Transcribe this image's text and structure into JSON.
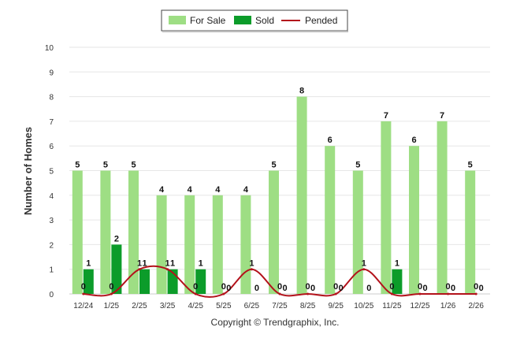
{
  "chart_data": {
    "type": "bar",
    "ylabel": "Number of Homes",
    "ylim": [
      0,
      10
    ],
    "yticks": [
      "0",
      "1",
      "2",
      "3",
      "4",
      "5",
      "6",
      "7",
      "8",
      "9",
      "10"
    ],
    "categories": [
      "12/24",
      "1/25",
      "2/25",
      "3/25",
      "4/25",
      "5/25",
      "6/25",
      "7/25",
      "8/25",
      "9/25",
      "10/25",
      "11/25",
      "12/25",
      "1/26",
      "2/26"
    ],
    "series": [
      {
        "name": "For Sale",
        "type": "bar",
        "color": "#9ede84",
        "values": [
          5,
          5,
          5,
          4,
          4,
          4,
          4,
          5,
          8,
          6,
          5,
          7,
          6,
          7,
          5
        ],
        "labels": [
          "5",
          "5",
          "5",
          "4",
          "4",
          "4",
          "4",
          "5",
          "8",
          "6",
          "5",
          "7",
          "6",
          "7",
          "5"
        ]
      },
      {
        "name": "Sold",
        "type": "bar",
        "color": "#0c9c2a",
        "values": [
          1,
          2,
          1,
          1,
          1,
          0,
          0,
          0,
          0,
          0,
          0,
          1,
          0,
          0,
          0
        ],
        "labels": [
          "1",
          "2",
          "1",
          "1",
          "1",
          "0",
          "0",
          "0",
          "0",
          "0",
          "0",
          "1",
          "0",
          "0",
          "0"
        ]
      },
      {
        "name": "Pended",
        "type": "line",
        "color": "#b3121b",
        "values": [
          0,
          0,
          1,
          1,
          0,
          0,
          1,
          0,
          0,
          0,
          1,
          0,
          0,
          0,
          0
        ],
        "labels": [
          "0",
          "0",
          "1",
          "1",
          "0",
          "0",
          "1",
          "0",
          "0",
          "0",
          "1",
          "0",
          "0",
          "0",
          "0"
        ]
      }
    ],
    "legend_position": "top-center",
    "grid": true
  },
  "footer": {
    "credit": "Copyright © Trendgraphix, Inc."
  }
}
